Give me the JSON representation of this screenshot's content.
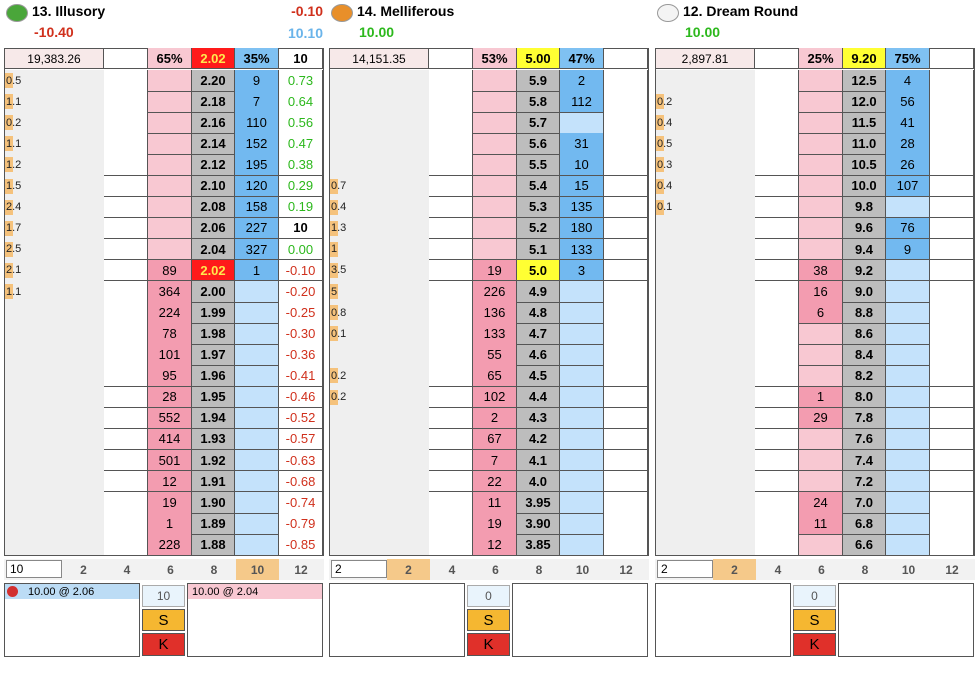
{
  "panels": [
    {
      "name": "13. Illusory",
      "pl_main": "-10.40",
      "pl_main_color": "#d0301c",
      "pl_top": "-0.10",
      "pl_alt": "10.10",
      "volume": "19,383.26",
      "back_pct": "65%",
      "ltp": "2.02",
      "ltp_bg": "#ff1a1a",
      "ltp_fg": "#ffe94d",
      "lay_pct": "35%",
      "stake_top": "10",
      "rows": [
        {
          "price": "2.20",
          "lay": "9",
          "pl": "0.73",
          "vol": "0.5"
        },
        {
          "price": "2.18",
          "lay": "7",
          "pl": "0.64",
          "vol": "1.1"
        },
        {
          "price": "2.16",
          "lay": "110",
          "pl": "0.56",
          "vol": "0.2"
        },
        {
          "price": "2.14",
          "lay": "152",
          "pl": "0.47",
          "vol": "1.1"
        },
        {
          "price": "2.12",
          "lay": "195",
          "pl": "0.38",
          "vol": "1.2"
        },
        {
          "price": "2.10",
          "lay": "120",
          "pl": "0.29",
          "vol": "1.5"
        },
        {
          "price": "2.08",
          "lay": "158",
          "pl": "0.19",
          "vol": "2.4"
        },
        {
          "price": "2.06",
          "lay": "227",
          "pl": "10",
          "vol": "1.7"
        },
        {
          "price": "2.04",
          "lay": "327",
          "pl": "0.00",
          "vol": "2.5"
        },
        {
          "price": "2.02",
          "back": "89",
          "lay": "1",
          "pl": "-0.10",
          "vol": "2.1",
          "ltp": true
        },
        {
          "price": "2.00",
          "back": "364",
          "pl": "-0.20",
          "vol": "1.1"
        },
        {
          "price": "1.99",
          "back": "224",
          "pl": "-0.25"
        },
        {
          "price": "1.98",
          "back": "78",
          "pl": "-0.30"
        },
        {
          "price": "1.97",
          "back": "101",
          "pl": "-0.36"
        },
        {
          "price": "1.96",
          "back": "95",
          "pl": "-0.41"
        },
        {
          "price": "1.95",
          "back": "28",
          "pl": "-0.46"
        },
        {
          "price": "1.94",
          "back": "552",
          "pl": "-0.52"
        },
        {
          "price": "1.93",
          "back": "414",
          "pl": "-0.57"
        },
        {
          "price": "1.92",
          "back": "501",
          "pl": "-0.63"
        },
        {
          "price": "1.91",
          "back": "12",
          "pl": "-0.68"
        },
        {
          "price": "1.90",
          "back": "19",
          "pl": "-0.74"
        },
        {
          "price": "1.89",
          "back": "1",
          "pl": "-0.79"
        },
        {
          "price": "1.88",
          "back": "228",
          "pl": "-0.85"
        }
      ],
      "stake_input": "10",
      "buttons": [
        "2",
        "4",
        "6",
        "8",
        "10",
        "12"
      ],
      "active_button": 4,
      "stake": "10",
      "back_order": "10.00 @ 2.06",
      "lay_order": "10.00 @ 2.04",
      "s": "S",
      "k": "K"
    },
    {
      "name": "14. Melliferous",
      "pl_main": "10.00",
      "pl_main_color": "#2cb81c",
      "volume": "14,151.35",
      "back_pct": "53%",
      "ltp": "5.00",
      "ltp_bg": "#ffff33",
      "ltp_fg": "#000000",
      "lay_pct": "47%",
      "rows": [
        {
          "price": "5.9",
          "lay": "2"
        },
        {
          "price": "5.8",
          "lay": "112"
        },
        {
          "price": "5.7"
        },
        {
          "price": "5.6",
          "lay": "31"
        },
        {
          "price": "5.5",
          "lay": "10"
        },
        {
          "price": "5.4",
          "lay": "15",
          "vol": "0.7"
        },
        {
          "price": "5.3",
          "lay": "135",
          "vol": "0.4"
        },
        {
          "price": "5.2",
          "lay": "180",
          "vol": "1.3"
        },
        {
          "price": "5.1",
          "lay": "133",
          "vol": "1"
        },
        {
          "price": "5.0",
          "back": "19",
          "lay": "3",
          "vol": "3.5",
          "ltp": true
        },
        {
          "price": "4.9",
          "back": "226",
          "vol": "5"
        },
        {
          "price": "4.8",
          "back": "136",
          "vol": "0.8"
        },
        {
          "price": "4.7",
          "back": "133",
          "vol": "0.1"
        },
        {
          "price": "4.6",
          "back": "55"
        },
        {
          "price": "4.5",
          "back": "65",
          "vol": "0.2"
        },
        {
          "price": "4.4",
          "back": "102",
          "vol": "0.2"
        },
        {
          "price": "4.3",
          "back": "2"
        },
        {
          "price": "4.2",
          "back": "67"
        },
        {
          "price": "4.1",
          "back": "7"
        },
        {
          "price": "4.0",
          "back": "22"
        },
        {
          "price": "3.95",
          "back": "11"
        },
        {
          "price": "3.90",
          "back": "19"
        },
        {
          "price": "3.85",
          "back": "12"
        }
      ],
      "stake_input": "2",
      "buttons": [
        "2",
        "4",
        "6",
        "8",
        "10",
        "12"
      ],
      "active_button": 0,
      "stake": "0",
      "s": "S",
      "k": "K"
    },
    {
      "name": "12. Dream Round",
      "pl_main": "10.00",
      "pl_main_color": "#2cb81c",
      "volume": "2,897.81",
      "back_pct": "25%",
      "ltp": "9.20",
      "ltp_bg": "#ffff33",
      "ltp_fg": "#000000",
      "lay_pct": "75%",
      "rows": [
        {
          "price": "12.5",
          "lay": "4"
        },
        {
          "price": "12.0",
          "lay": "56",
          "vol": "0.2"
        },
        {
          "price": "11.5",
          "lay": "41",
          "vol": "0.4"
        },
        {
          "price": "11.0",
          "lay": "28",
          "vol": "0.5"
        },
        {
          "price": "10.5",
          "lay": "26",
          "vol": "0.3"
        },
        {
          "price": "10.0",
          "lay": "107",
          "vol": "0.4"
        },
        {
          "price": "9.8",
          "vol": "0.1"
        },
        {
          "price": "9.6",
          "lay": "76"
        },
        {
          "price": "9.4",
          "lay": "9"
        },
        {
          "price": "9.2",
          "back": "38"
        },
        {
          "price": "9.0",
          "back": "16"
        },
        {
          "price": "8.8",
          "back": "6"
        },
        {
          "price": "8.6"
        },
        {
          "price": "8.4"
        },
        {
          "price": "8.2"
        },
        {
          "price": "8.0",
          "back": "1"
        },
        {
          "price": "7.8",
          "back": "29"
        },
        {
          "price": "7.6"
        },
        {
          "price": "7.4"
        },
        {
          "price": "7.2"
        },
        {
          "price": "7.0",
          "back": "24"
        },
        {
          "price": "6.8",
          "back": "11"
        },
        {
          "price": "6.6"
        }
      ],
      "stake_input": "2",
      "buttons": [
        "2",
        "4",
        "6",
        "8",
        "10",
        "12"
      ],
      "active_button": 0,
      "stake": "0",
      "s": "S",
      "k": "K"
    }
  ]
}
